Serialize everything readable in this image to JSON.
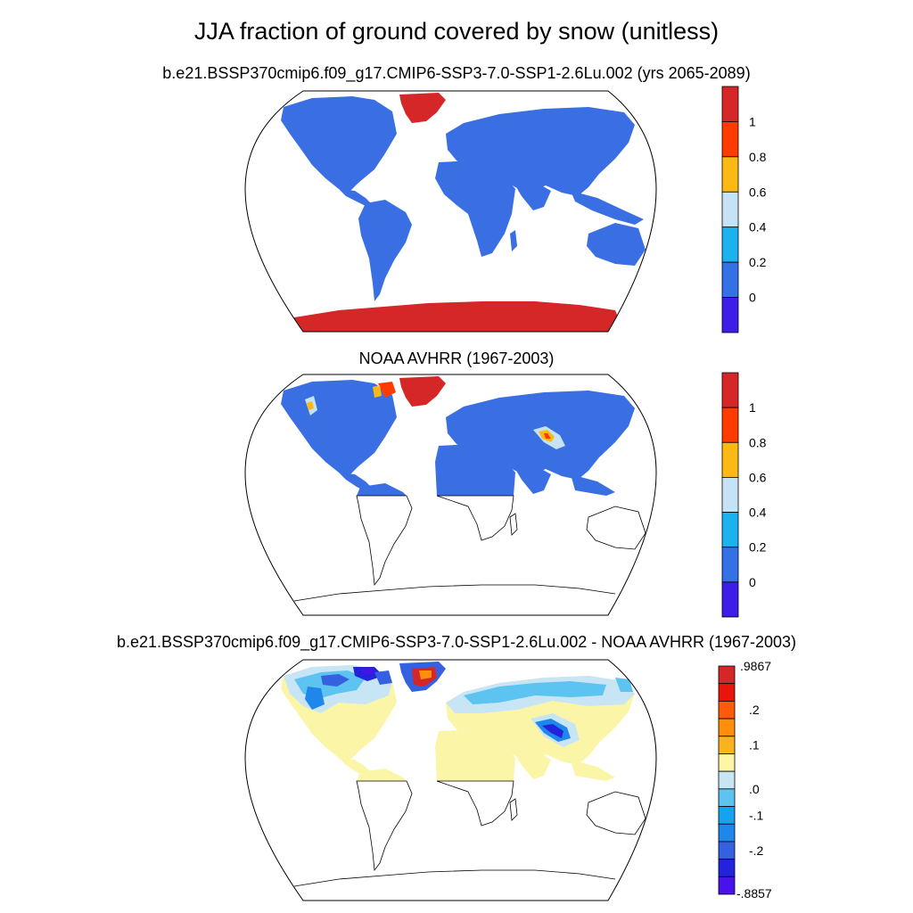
{
  "figure": {
    "title": "JJA fraction of ground covered by snow (unitless)"
  },
  "panels": [
    {
      "id": "model",
      "subtitle": "b.e21.BSSP370cmip6.f09_g17.CMIP6-SSP3-7.0-SSP1-2.6Lu.002 (yrs 2065-2089)",
      "colorbar": {
        "tick_labels": [
          "1",
          "0.8",
          "0.6",
          "0.4",
          "0.2",
          "0"
        ],
        "colors": [
          "#d62728",
          "#ff3c00",
          "#fdb913",
          "#c6e2f5",
          "#1ab2f0",
          "#3470e6",
          "#3f1de9"
        ]
      }
    },
    {
      "id": "obs",
      "subtitle": "NOAA AVHRR (1967-2003)",
      "colorbar": {
        "tick_labels": [
          "1",
          "0.8",
          "0.6",
          "0.4",
          "0.2",
          "0"
        ],
        "colors": [
          "#d62728",
          "#ff3c00",
          "#fdb913",
          "#c6e2f5",
          "#1ab2f0",
          "#3470e6",
          "#3f1de9"
        ]
      }
    },
    {
      "id": "diff",
      "subtitle": "b.e21.BSSP370cmip6.f09_g17.CMIP6-SSP3-7.0-SSP1-2.6Lu.002 - NOAA AVHRR (1967-2003)",
      "colorbar": {
        "top_label": ".9867",
        "bottom_label": "-.8857",
        "tick_labels": [
          ".2",
          ".1",
          ".0",
          "-.1",
          "-.2"
        ],
        "colors": [
          "#d62728",
          "#e8160a",
          "#ff5a0a",
          "#fe8e0b",
          "#f9b31c",
          "#fef6a5",
          "#c8e5f5",
          "#5dc3f0",
          "#15a3ef",
          "#1f86ea",
          "#3560e0",
          "#2323dc",
          "#4912ea"
        ]
      }
    }
  ],
  "legend_colors": {
    "land_zero": "#3a6fe3",
    "snow_high": "#d62728",
    "diff_zero": "#fbf6a7"
  }
}
